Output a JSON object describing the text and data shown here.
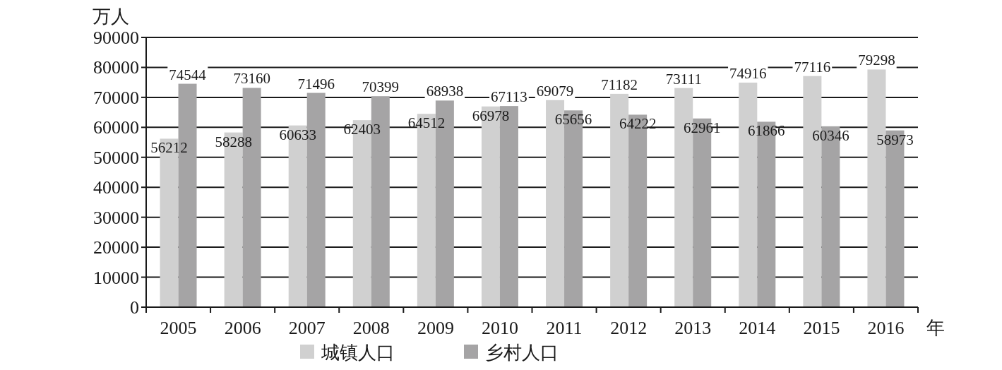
{
  "chart_data": {
    "type": "bar",
    "categories": [
      "2005",
      "2006",
      "2007",
      "2008",
      "2009",
      "2010",
      "2011",
      "2012",
      "2013",
      "2014",
      "2015",
      "2016"
    ],
    "series": [
      {
        "name": "城镇人口",
        "color": "#d0d0d0",
        "values": [
          56212,
          58288,
          60633,
          62403,
          64512,
          66978,
          69079,
          71182,
          73111,
          74916,
          77116,
          79298
        ]
      },
      {
        "name": "乡村人口",
        "color": "#a5a4a5",
        "values": [
          74544,
          73160,
          71496,
          70399,
          68938,
          67113,
          65656,
          64222,
          62961,
          61866,
          60346,
          58973
        ]
      }
    ],
    "ylabel": "万人",
    "xlabel": "年",
    "ylim": [
      0,
      90000
    ],
    "yticks": [
      0,
      10000,
      20000,
      30000,
      40000,
      50000,
      60000,
      70000,
      80000,
      90000
    ],
    "grid": "y",
    "legend": "bottom",
    "data_labels": true
  }
}
